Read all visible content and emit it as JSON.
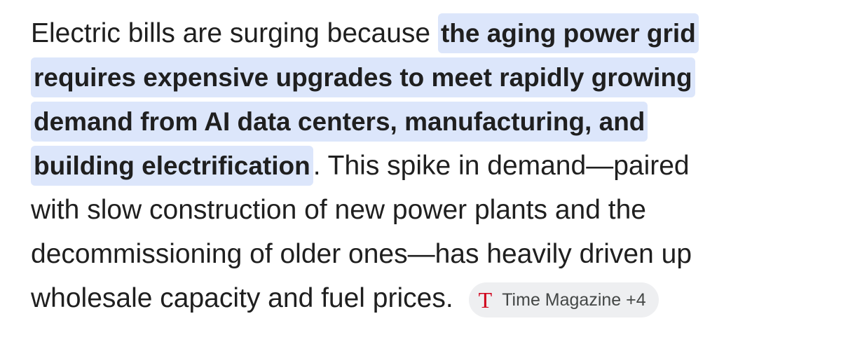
{
  "paragraph": {
    "lines": [
      [
        {
          "text": "Electric bills are surging because ",
          "highlight": false
        },
        {
          "text": "the aging power grid",
          "highlight": true
        }
      ],
      [
        {
          "text": "requires expensive upgrades to meet rapidly growing",
          "highlight": true
        }
      ],
      [
        {
          "text": "demand from AI data centers, manufacturing, and",
          "highlight": true
        }
      ],
      [
        {
          "text": "building electrification",
          "highlight": true
        },
        {
          "text": ". This spike in demand—paired",
          "highlight": false
        }
      ],
      [
        {
          "text": "with slow construction of new power plants and the",
          "highlight": false
        }
      ],
      [
        {
          "text": "decommissioning of older ones—has heavily driven up",
          "highlight": false
        }
      ],
      [
        {
          "text": "wholesale capacity and fuel prices.",
          "highlight": false
        }
      ]
    ]
  },
  "source_chip": {
    "icon": "T",
    "label": "Time Magazine +4"
  }
}
